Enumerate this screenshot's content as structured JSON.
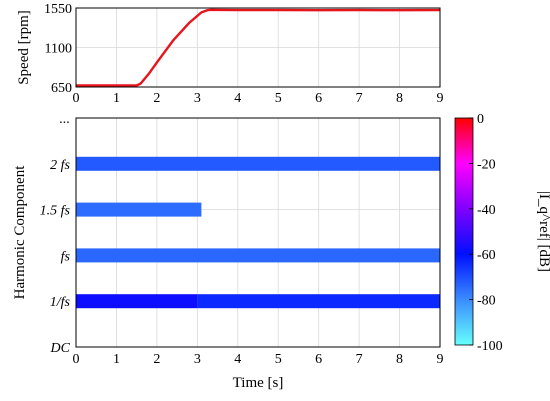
{
  "chart_data": [
    {
      "type": "line",
      "ylabel": "Speed [rpm]",
      "xlim": [
        0,
        9
      ],
      "ylim": [
        650,
        1550
      ],
      "xticks": [
        "0",
        "1",
        "2",
        "3",
        "4",
        "5",
        "6",
        "7",
        "8",
        "9"
      ],
      "yticks": [
        "650",
        "1100",
        "1550"
      ],
      "grid": true,
      "line_color": "#e8141c",
      "series": [
        {
          "x": [
            0,
            0.5,
            1.0,
            1.5,
            1.6,
            1.8,
            2.0,
            2.4,
            2.8,
            3.1,
            3.25,
            3.35,
            3.5,
            4,
            5,
            6,
            7,
            8,
            9
          ],
          "y": [
            668,
            668,
            668,
            668,
            690,
            800,
            930,
            1180,
            1380,
            1500,
            1525,
            1530,
            1528,
            1526,
            1526,
            1525,
            1526,
            1525,
            1526
          ]
        }
      ]
    },
    {
      "type": "heatmap",
      "xlabel": "Time [s]",
      "ylabel": "Harmonic Component",
      "xlim": [
        0,
        9
      ],
      "xticks": [
        "0",
        "1",
        "2",
        "3",
        "4",
        "5",
        "6",
        "7",
        "8",
        "9"
      ],
      "yticks": [
        "...",
        "2 fs",
        "1.5 fs",
        "fs",
        "1/fs",
        "DC"
      ],
      "grid": true,
      "colorbar": {
        "label": "|I_q^ref| [dB]",
        "range": [
          -100,
          0
        ],
        "ticks": [
          "0",
          "-20",
          "-40",
          "-60",
          "-80",
          "-100"
        ],
        "colors": [
          "#ff0000",
          "#ff00ff",
          "#8000ff",
          "#0010ff",
          "#3a8cff",
          "#66ffff"
        ]
      },
      "bands": [
        {
          "name": "2 fs",
          "segments": [
            {
              "x0": 0,
              "x1": 9,
              "level_db": -72
            }
          ]
        },
        {
          "name": "1.5 fs",
          "segments": [
            {
              "x0": 0,
              "x1": 3.1,
              "level_db": -75
            }
          ]
        },
        {
          "name": "fs",
          "segments": [
            {
              "x0": 0,
              "x1": 9,
              "level_db": -74
            }
          ]
        },
        {
          "name": "1/fs",
          "segments": [
            {
              "x0": 0,
              "x1": 3.0,
              "level_db": -58
            },
            {
              "x0": 3.0,
              "x1": 9,
              "level_db": -64
            }
          ]
        }
      ]
    }
  ]
}
